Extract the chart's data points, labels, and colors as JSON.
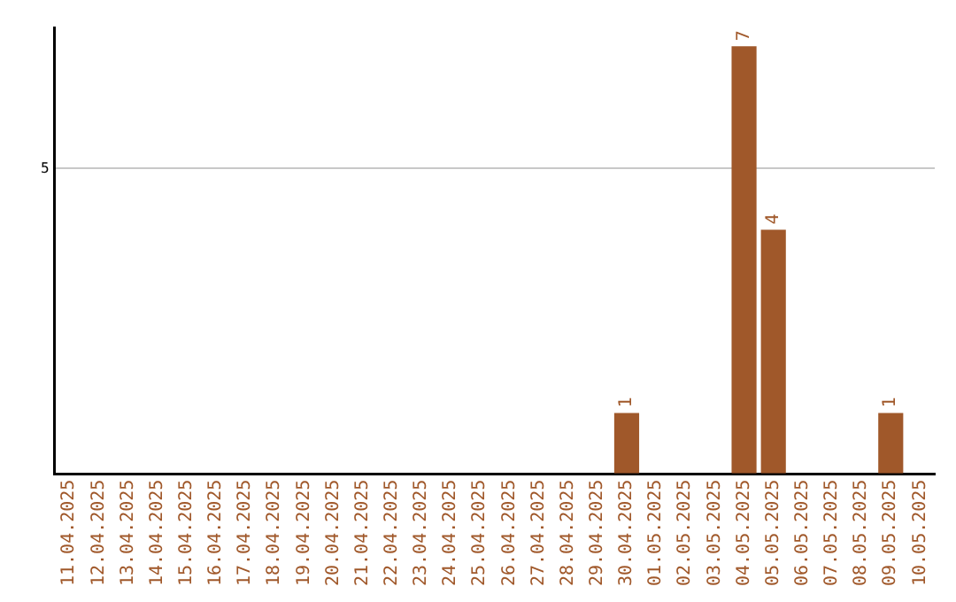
{
  "chart_data": {
    "type": "bar",
    "categories": [
      "11.04.2025",
      "12.04.2025",
      "13.04.2025",
      "14.04.2025",
      "15.04.2025",
      "16.04.2025",
      "17.04.2025",
      "18.04.2025",
      "19.04.2025",
      "20.04.2025",
      "21.04.2025",
      "22.04.2025",
      "23.04.2025",
      "24.04.2025",
      "25.04.2025",
      "26.04.2025",
      "27.04.2025",
      "28.04.2025",
      "29.04.2025",
      "30.04.2025",
      "01.05.2025",
      "02.05.2025",
      "03.05.2025",
      "04.05.2025",
      "05.05.2025",
      "06.05.2025",
      "07.05.2025",
      "08.05.2025",
      "09.05.2025",
      "10.05.2025"
    ],
    "values": [
      null,
      null,
      null,
      null,
      null,
      null,
      null,
      null,
      null,
      null,
      null,
      null,
      null,
      null,
      null,
      null,
      null,
      null,
      null,
      1,
      null,
      null,
      null,
      7,
      4,
      null,
      null,
      null,
      1,
      null
    ],
    "data_labels": true,
    "color": "#a0582a",
    "ylim": [
      0,
      7.3
    ],
    "yticks": [
      {
        "value": 0,
        "label": null
      },
      5
    ],
    "grid": "y",
    "legend": false
  }
}
